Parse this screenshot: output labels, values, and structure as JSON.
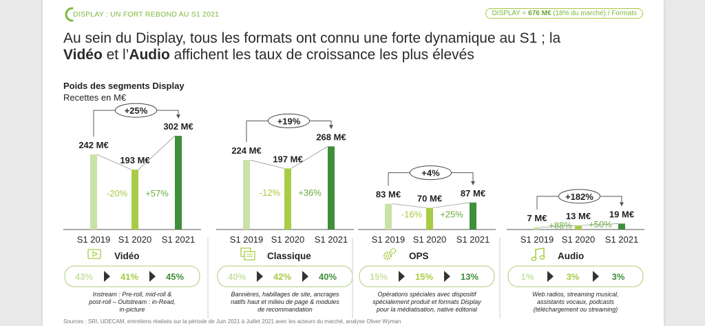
{
  "header": {
    "title": "DISPLAY : UN FORT REBOND AU S1 2021",
    "pill_prefix": "DISPLAY = ",
    "pill_bold": "676 M€",
    "pill_suffix": " (18% du marché) / Formats"
  },
  "headline": {
    "line1": "Au sein du Display, tous les formats ont connu une forte dynamique au S1 ; la",
    "line2_bold1": "Vidéo",
    "line2_mid": " et l’",
    "line2_bold2": "Audio",
    "line2_end": " affichent les taux de croissance les plus élevés"
  },
  "chart_title": "Poids des segments Display",
  "chart_unit": "Recettes en M€",
  "colors": {
    "c2019": "#c9e2a6",
    "c2020": "#a8cc45",
    "c2021": "#3f8e3a",
    "growth": "#6aaa3a",
    "decline": "#a8c840",
    "pill_border": "#bfd891"
  },
  "chart_data": {
    "type": "bar",
    "categories": [
      "S1 2019",
      "S1 2020",
      "S1 2021"
    ],
    "unit": "M€",
    "groups": [
      {
        "name": "Vidéo",
        "icon": "video-icon",
        "values": [
          242,
          193,
          302
        ],
        "value_labels": [
          "242 M€",
          "193 M€",
          "302 M€"
        ],
        "changes": [
          "-20%",
          "+57%"
        ],
        "total_change": "+25%",
        "shares": [
          "43%",
          "41%",
          "45%"
        ],
        "description": "Instream : Pre-roll, mid-roll & post-roll – Outstream : in-Read, in-picture"
      },
      {
        "name": "Classique",
        "icon": "banner-icon",
        "values": [
          224,
          197,
          268
        ],
        "value_labels": [
          "224 M€",
          "197 M€",
          "268 M€"
        ],
        "changes": [
          "-12%",
          "+36%"
        ],
        "total_change": "+19%",
        "shares": [
          "40%",
          "42%",
          "40%"
        ],
        "description": "Bannières, habillages de site, ancrages natifs haut et milieu de page & modules de recommandation"
      },
      {
        "name": "OPS",
        "icon": "gears-icon",
        "values": [
          83,
          70,
          87
        ],
        "value_labels": [
          "83 M€",
          "70 M€",
          "87 M€"
        ],
        "changes": [
          "-16%",
          "+25%"
        ],
        "total_change": "+4%",
        "shares": [
          "15%",
          "15%",
          "13%"
        ],
        "description": "Opérations spéciales avec dispositif spécialement produit et formats Display pour la médiatisation, native éditorial"
      },
      {
        "name": "Audio",
        "icon": "music-note-icon",
        "values": [
          7,
          13,
          19
        ],
        "value_labels": [
          "7 M€",
          "13 M€",
          "19 M€"
        ],
        "changes": [
          "+88%",
          "+50%"
        ],
        "total_change": "+182%",
        "shares": [
          "1%",
          "3%",
          "3%"
        ],
        "description": "Web radios, streaming musical, assistants vocaux, podcasts (téléchargement ou streaming)"
      }
    ]
  },
  "source": "Sources : SRI, UDECAM, entretiens réalisés sur la période de Juin 2021 à Juillet 2021 avec les acteurs du marché, analyse Oliver Wyman"
}
